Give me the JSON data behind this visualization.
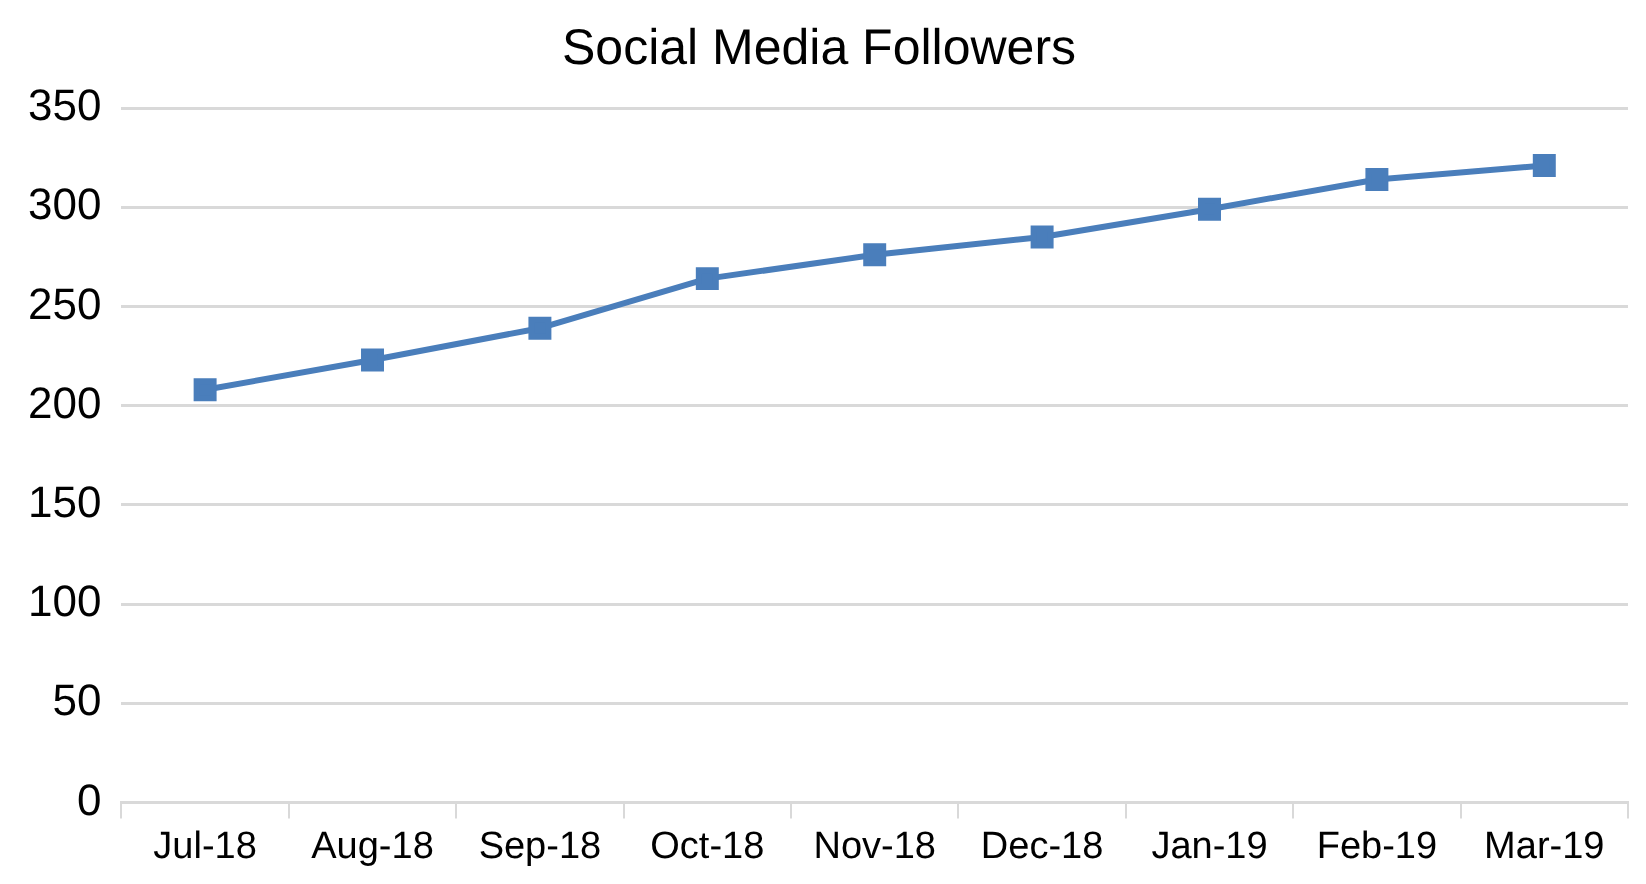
{
  "chart_data": {
    "type": "line",
    "title": "Social Media Followers",
    "categories": [
      "Jul-18",
      "Aug-18",
      "Sep-18",
      "Oct-18",
      "Nov-18",
      "Dec-18",
      "Jan-19",
      "Feb-19",
      "Mar-19"
    ],
    "series": [
      {
        "color": "#4a7ebb",
        "values": [
          208,
          223,
          239,
          264,
          276,
          285,
          299,
          314,
          321
        ]
      }
    ],
    "ylim": [
      0,
      350
    ],
    "yticks": [
      0,
      50,
      100,
      150,
      200,
      250,
      300,
      350
    ],
    "grid": "y",
    "legend": false,
    "marker": "square",
    "line_style": "solid"
  }
}
